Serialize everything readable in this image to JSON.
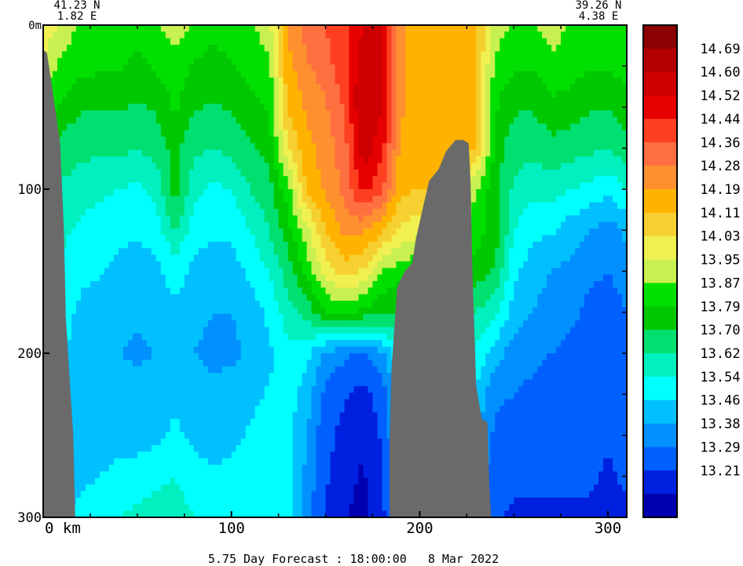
{
  "chart_data": {
    "type": "heatmap",
    "title": "",
    "subtitle": "",
    "footer": "5.75 Day Forecast : 18:00:00   8 Mar 2022",
    "section_start": {
      "lat": "41.23 N",
      "lon": "1.82 E"
    },
    "section_end": {
      "lat": "39.26 N",
      "lon": "4.38 E"
    },
    "xlabel": "",
    "ylabel": "",
    "xlim": [
      0,
      310
    ],
    "ylim": [
      0,
      300
    ],
    "y_inverted": true,
    "x_ticks": [
      {
        "value": 0,
        "label": "0 km"
      },
      {
        "value": 100,
        "label": "100"
      },
      {
        "value": 200,
        "label": "200"
      },
      {
        "value": 300,
        "label": "300"
      }
    ],
    "y_ticks": [
      {
        "value": 0,
        "label": "0m"
      },
      {
        "value": 100,
        "label": "100"
      },
      {
        "value": 200,
        "label": "200"
      },
      {
        "value": 300,
        "label": "300"
      }
    ],
    "colorbar": {
      "placement": "right",
      "levels": [
        "14.69",
        "14.60",
        "14.52",
        "14.44",
        "14.36",
        "14.28",
        "14.19",
        "14.11",
        "14.03",
        "13.95",
        "13.87",
        "13.79",
        "13.70",
        "13.62",
        "13.54",
        "13.46",
        "13.38",
        "13.29",
        "13.21"
      ],
      "colors": [
        "#8b0000",
        "#b40000",
        "#cc0000",
        "#e60000",
        "#ff4020",
        "#ff7040",
        "#ff9030",
        "#ffb300",
        "#f5d030",
        "#f0f050",
        "#c8f050",
        "#00e000",
        "#00c800",
        "#00e070",
        "#00f0c0",
        "#00ffff",
        "#00c0ff",
        "#0090ff",
        "#0060ff",
        "#0020e0",
        "#0000b0"
      ]
    },
    "land_color": "#6a6a6a",
    "x": [
      0,
      10,
      20,
      30,
      40,
      50,
      60,
      70,
      80,
      90,
      100,
      110,
      120,
      130,
      140,
      150,
      160,
      170,
      180,
      190,
      200,
      210,
      220,
      230,
      240,
      250,
      260,
      270,
      280,
      290,
      300,
      310
    ],
    "y": [
      0,
      25,
      50,
      75,
      100,
      125,
      150,
      175,
      200,
      225,
      250,
      275,
      300
    ],
    "values": [
      [
        14.1,
        14.0,
        13.93,
        13.94,
        13.93,
        13.9,
        13.93,
        14.0,
        13.93,
        13.9,
        13.92,
        13.94,
        14.0,
        14.3,
        14.4,
        14.45,
        14.5,
        14.6,
        14.6,
        14.3,
        14.2,
        14.2,
        14.2,
        14.2,
        14.0,
        13.93,
        13.93,
        14.0,
        13.94,
        13.93,
        13.94,
        13.93
      ],
      [
        14.0,
        13.93,
        13.9,
        13.88,
        13.88,
        13.85,
        13.88,
        13.92,
        13.86,
        13.84,
        13.86,
        13.9,
        13.92,
        14.25,
        14.35,
        14.4,
        14.5,
        14.65,
        14.6,
        14.3,
        14.2,
        14.2,
        14.2,
        14.2,
        13.93,
        13.88,
        13.88,
        13.92,
        13.9,
        13.88,
        13.88,
        13.9
      ],
      [
        13.92,
        13.85,
        13.8,
        13.8,
        13.8,
        13.78,
        13.8,
        13.88,
        13.8,
        13.78,
        13.8,
        13.84,
        13.88,
        14.2,
        14.3,
        14.35,
        14.45,
        14.7,
        14.6,
        14.3,
        14.2,
        14.2,
        14.2,
        14.2,
        13.88,
        13.8,
        13.8,
        13.85,
        13.84,
        13.8,
        13.8,
        13.84
      ],
      [
        13.85,
        13.76,
        13.72,
        13.72,
        13.72,
        13.7,
        13.74,
        13.82,
        13.72,
        13.7,
        13.72,
        13.78,
        13.82,
        14.1,
        14.25,
        14.32,
        14.4,
        14.65,
        14.55,
        14.25,
        14.2,
        14.2,
        14.2,
        14.2,
        13.84,
        13.74,
        13.72,
        13.76,
        13.74,
        13.72,
        13.7,
        13.75
      ],
      [
        13.75,
        13.68,
        13.66,
        13.64,
        13.62,
        13.6,
        13.64,
        13.84,
        13.64,
        13.6,
        13.62,
        13.7,
        13.76,
        13.92,
        14.2,
        14.3,
        14.38,
        14.55,
        14.45,
        14.2,
        14.2,
        14.2,
        14.1,
        13.95,
        13.82,
        13.68,
        13.64,
        13.66,
        13.62,
        13.6,
        13.56,
        13.62
      ],
      [
        13.7,
        13.64,
        13.6,
        13.58,
        13.56,
        13.55,
        13.58,
        13.7,
        13.58,
        13.55,
        13.56,
        13.62,
        13.7,
        13.84,
        14.0,
        14.2,
        14.3,
        14.3,
        14.2,
        14.1,
        14.05,
        14.0,
        13.95,
        13.9,
        13.85,
        13.62,
        13.56,
        13.55,
        13.5,
        13.46,
        13.42,
        13.48
      ],
      [
        13.66,
        13.6,
        13.56,
        13.55,
        13.52,
        13.5,
        13.52,
        13.58,
        13.52,
        13.5,
        13.5,
        13.56,
        13.62,
        13.74,
        13.9,
        14.05,
        14.15,
        14.1,
        13.95,
        13.9,
        13.88,
        13.86,
        13.86,
        13.84,
        13.78,
        13.56,
        13.5,
        13.46,
        13.44,
        13.4,
        13.38,
        13.42
      ],
      [
        13.62,
        13.58,
        13.52,
        13.5,
        13.48,
        13.47,
        13.48,
        13.52,
        13.48,
        13.46,
        13.46,
        13.5,
        13.56,
        13.66,
        13.74,
        13.86,
        13.9,
        13.85,
        13.8,
        13.78,
        13.76,
        13.74,
        13.72,
        13.7,
        13.64,
        13.5,
        13.46,
        13.42,
        13.4,
        13.36,
        13.34,
        13.38
      ],
      [
        13.6,
        13.55,
        13.5,
        13.48,
        13.46,
        13.45,
        13.46,
        13.48,
        13.46,
        13.44,
        13.44,
        13.48,
        13.52,
        13.6,
        13.56,
        13.44,
        13.4,
        13.36,
        13.44,
        13.62,
        13.66,
        13.64,
        13.62,
        13.6,
        13.5,
        13.42,
        13.4,
        13.38,
        13.36,
        13.34,
        13.32,
        13.34
      ],
      [
        13.58,
        13.54,
        13.5,
        13.48,
        13.5,
        13.48,
        13.5,
        13.52,
        13.5,
        13.48,
        13.5,
        13.52,
        13.55,
        13.58,
        13.5,
        13.36,
        13.3,
        13.26,
        13.34,
        13.56,
        13.58,
        13.56,
        13.54,
        13.52,
        13.4,
        13.38,
        13.36,
        13.34,
        13.34,
        13.32,
        13.3,
        13.32
      ],
      [
        13.56,
        13.52,
        13.5,
        13.5,
        13.52,
        13.5,
        13.52,
        13.56,
        13.52,
        13.5,
        13.52,
        13.55,
        13.58,
        13.56,
        13.46,
        13.32,
        13.26,
        13.22,
        13.3,
        13.52,
        13.55,
        13.52,
        13.5,
        13.48,
        13.36,
        13.34,
        13.32,
        13.32,
        13.32,
        13.3,
        13.3,
        13.3
      ],
      [
        13.55,
        13.52,
        13.52,
        13.54,
        13.56,
        13.58,
        13.6,
        13.62,
        13.58,
        13.55,
        13.56,
        13.58,
        13.6,
        13.56,
        13.44,
        13.3,
        13.24,
        13.2,
        13.28,
        13.5,
        13.52,
        13.5,
        13.48,
        13.46,
        13.32,
        13.3,
        13.3,
        13.3,
        13.3,
        13.3,
        13.28,
        13.3
      ],
      [
        13.55,
        13.54,
        13.56,
        13.6,
        13.62,
        13.64,
        13.66,
        13.66,
        13.62,
        13.6,
        13.6,
        13.6,
        13.6,
        13.56,
        13.42,
        13.28,
        13.22,
        13.18,
        13.26,
        13.48,
        13.5,
        13.48,
        13.46,
        13.44,
        13.3,
        13.28,
        13.28,
        13.28,
        13.28,
        13.28,
        13.26,
        13.28
      ]
    ],
    "land": [
      {
        "name": "west-coast",
        "outline": [
          [
            0,
            300
          ],
          [
            0,
            15
          ],
          [
            2,
            17
          ],
          [
            5,
            40
          ],
          [
            9,
            72
          ],
          [
            11,
            125
          ],
          [
            12,
            178
          ],
          [
            14,
            215
          ],
          [
            16,
            250
          ],
          [
            17,
            300
          ]
        ]
      },
      {
        "name": "seamount",
        "outline": [
          [
            184,
            300
          ],
          [
            184,
            255
          ],
          [
            185,
            210
          ],
          [
            188,
            160
          ],
          [
            192,
            150
          ],
          [
            196,
            145
          ],
          [
            198,
            130
          ],
          [
            202,
            110
          ],
          [
            205,
            95
          ],
          [
            210,
            88
          ],
          [
            214,
            77
          ],
          [
            219,
            70
          ],
          [
            223,
            70
          ],
          [
            226,
            72
          ],
          [
            227,
            95
          ],
          [
            228,
            150
          ],
          [
            230,
            220
          ],
          [
            233,
            240
          ],
          [
            236,
            242
          ],
          [
            237,
            280
          ],
          [
            238,
            300
          ]
        ]
      }
    ]
  }
}
